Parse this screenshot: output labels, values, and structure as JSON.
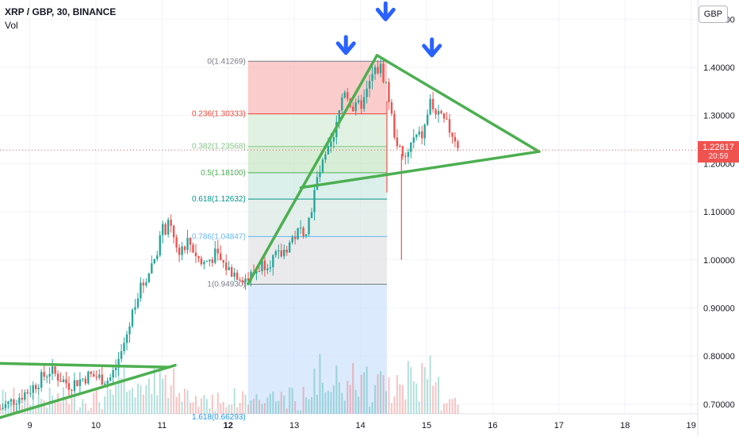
{
  "header": {
    "title": "XRP / GBP, 30, BINANCE",
    "indicator": "Vol"
  },
  "currency_button": "GBP",
  "price_tag": {
    "price": "1.22817",
    "countdown": "20:59"
  },
  "colors": {
    "up": "#26a69a",
    "down": "#ef5350",
    "trend": "#4caf50",
    "arrow": "#2962ff",
    "axis_text": "#131722",
    "grid": "#f0f3fa"
  },
  "chart_data": {
    "type": "candlestick",
    "title": "XRP / GBP, 30, BINANCE",
    "xlabel": "",
    "ylabel": "",
    "x_ticks": [
      "9",
      "10",
      "11",
      "12",
      "13",
      "14",
      "15",
      "16",
      "17",
      "18",
      "19"
    ],
    "y_ticks": [
      "0.70000",
      "0.80000",
      "0.90000",
      "1.00000",
      "1.10000",
      "1.20000",
      "1.30000",
      "1.40000",
      "1.50000"
    ],
    "ylim": [
      0.68,
      1.54
    ],
    "xlim": [
      8.55,
      19.1
    ],
    "last_price": 1.22817,
    "fibonacci": {
      "x_range": [
        12.3,
        14.4
      ],
      "levels": [
        {
          "label": "0(1.41269)",
          "ratio": 0,
          "price": 1.41269,
          "color": "#787b86"
        },
        {
          "label": "0.236(1.30333)",
          "ratio": 0.236,
          "price": 1.30333,
          "color": "#f44336"
        },
        {
          "label": "0.382(1.23568)",
          "ratio": 0.382,
          "price": 1.23568,
          "color": "#81c784"
        },
        {
          "label": "0.5(1.18100)",
          "ratio": 0.5,
          "price": 1.181,
          "color": "#4caf50"
        },
        {
          "label": "0.618(1.12632)",
          "ratio": 0.618,
          "price": 1.12632,
          "color": "#009688"
        },
        {
          "label": "0.786(1.04847)",
          "ratio": 0.786,
          "price": 1.04847,
          "color": "#64b5f6"
        },
        {
          "label": "1(0.94930)",
          "ratio": 1,
          "price": 0.9493,
          "color": "#787b86"
        },
        {
          "label": "1.618(0.66293)",
          "ratio": 1.618,
          "price": 0.66293,
          "color": "#2196f3"
        }
      ]
    },
    "trendlines": [
      {
        "from": [
          8.5,
          0.785
        ],
        "to": [
          11.1,
          0.777
        ]
      },
      {
        "from": [
          8.55,
          0.672
        ],
        "to": [
          11.2,
          0.781
        ]
      },
      {
        "from": [
          12.3,
          0.95
        ],
        "to": [
          14.25,
          1.425
        ]
      },
      {
        "from": [
          14.25,
          1.425
        ],
        "to": [
          16.7,
          1.225
        ]
      },
      {
        "from": [
          13.1,
          1.15
        ],
        "to": [
          16.7,
          1.225
        ]
      }
    ],
    "arrows": [
      {
        "x": 13.78,
        "y": 1.43
      },
      {
        "x": 14.38,
        "y": 1.5
      },
      {
        "x": 15.08,
        "y": 1.425
      }
    ],
    "price_keypoints": [
      [
        8.55,
        0.69
      ],
      [
        9.0,
        0.73
      ],
      [
        9.3,
        0.77
      ],
      [
        9.6,
        0.74
      ],
      [
        9.9,
        0.76
      ],
      [
        10.2,
        0.75
      ],
      [
        10.35,
        0.79
      ],
      [
        10.5,
        0.86
      ],
      [
        10.6,
        0.92
      ],
      [
        10.75,
        0.96
      ],
      [
        10.9,
        1.01
      ],
      [
        11.0,
        1.06
      ],
      [
        11.1,
        1.07
      ],
      [
        11.25,
        1.02
      ],
      [
        11.4,
        1.04
      ],
      [
        11.6,
        0.99
      ],
      [
        11.8,
        1.01
      ],
      [
        12.0,
        0.98
      ],
      [
        12.3,
        0.96
      ],
      [
        12.5,
        0.99
      ],
      [
        12.8,
        1.01
      ],
      [
        13.0,
        1.05
      ],
      [
        13.2,
        1.07
      ],
      [
        13.35,
        1.17
      ],
      [
        13.5,
        1.22
      ],
      [
        13.6,
        1.25
      ],
      [
        13.75,
        1.36
      ],
      [
        13.9,
        1.31
      ],
      [
        14.05,
        1.33
      ],
      [
        14.2,
        1.39
      ],
      [
        14.3,
        1.4
      ],
      [
        14.4,
        1.36
      ],
      [
        14.5,
        1.27
      ],
      [
        14.65,
        1.2
      ],
      [
        14.8,
        1.25
      ],
      [
        14.95,
        1.26
      ],
      [
        15.05,
        1.33
      ],
      [
        15.15,
        1.3
      ],
      [
        15.3,
        1.28
      ],
      [
        15.45,
        1.25
      ],
      [
        15.5,
        1.228
      ]
    ]
  }
}
